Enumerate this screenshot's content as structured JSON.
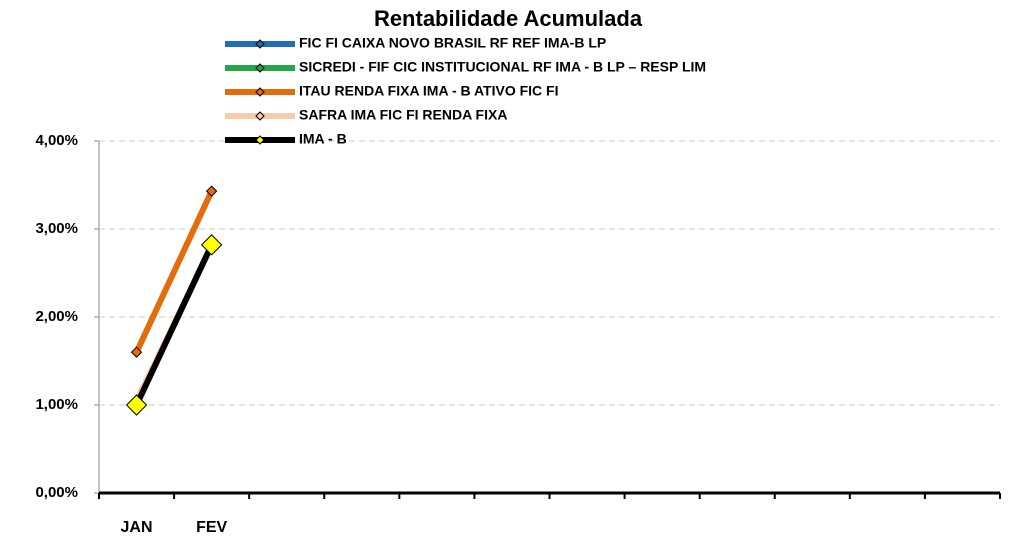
{
  "chart_data": {
    "type": "line",
    "title": "Rentabilidade Acumulada",
    "categories": [
      "JAN",
      "FEV",
      null,
      null,
      null,
      null,
      null,
      null,
      null,
      null,
      null,
      null
    ],
    "series": [
      {
        "name": "FIC FI CAIXA NOVO BRASIL RF REF IMA-B LP",
        "color": "#1f6fb5",
        "marker_color": "#1f6fb5",
        "values": [
          1.0,
          2.8,
          null,
          null,
          null,
          null,
          null,
          null,
          null,
          null,
          null,
          null
        ]
      },
      {
        "name": "SICREDI - FIF CIC INSTITUCIONAL RF IMA - B LP – RESP LIM",
        "color": "#22a84a",
        "marker_color": "#22a84a",
        "values": [
          0.98,
          2.78,
          null,
          null,
          null,
          null,
          null,
          null,
          null,
          null,
          null,
          null
        ]
      },
      {
        "name": "ITAU RENDA FIXA IMA - B ATIVO FIC FI",
        "color": "#e46c0a",
        "marker_color": "#e46c0a",
        "values": [
          1.6,
          3.43,
          null,
          null,
          null,
          null,
          null,
          null,
          null,
          null,
          null,
          null
        ]
      },
      {
        "name": "SAFRA IMA FIC FI RENDA FIXA",
        "color": "#f8cbad",
        "marker_color": "#f8cbad",
        "values": [
          1.05,
          2.8,
          null,
          null,
          null,
          null,
          null,
          null,
          null,
          null,
          null,
          null
        ]
      },
      {
        "name": "IMA - B",
        "color": "#000000",
        "marker_color": "#ffff00",
        "values": [
          1.0,
          2.82,
          null,
          null,
          null,
          null,
          null,
          null,
          null,
          null,
          null,
          null
        ]
      }
    ],
    "ylim": [
      0,
      4
    ],
    "yticks": [
      {
        "value": 0,
        "label": "0,00%"
      },
      {
        "value": 1,
        "label": "1,00%"
      },
      {
        "value": 2,
        "label": "2,00%"
      },
      {
        "value": 3,
        "label": "3,00%"
      },
      {
        "value": 4,
        "label": "4,00%"
      }
    ],
    "grid": true
  }
}
